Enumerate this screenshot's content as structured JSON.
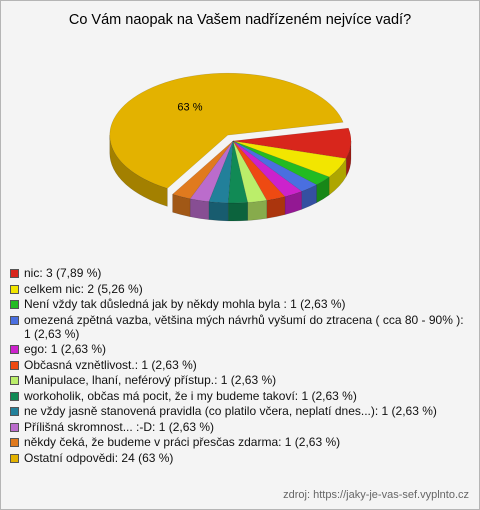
{
  "chart_data": {
    "type": "pie",
    "title": "Co Vám naopak na Vašem nadřízeném nejvíce vadí?",
    "categories": [
      "nic: 3 (7,89 %)",
      "celkem nic: 2 (5,26 %)",
      "Není vždy tak důsledná jak by někdy mohla byla : 1 (2,63 %)",
      "omezená zpětná vazba, většina mých návrhů vyšumí do ztracena ( cca 80 - 90% ): 1 (2,63 %)",
      "ego: 1 (2,63 %)",
      "Občasná vznětlivost.: 1 (2,63 %)",
      "Manipulace, lhaní, neférový přístup.: 1 (2,63 %)",
      "workoholik, občas má pocit, že i my budeme takoví: 1 (2,63 %)",
      "ne vždy jasně stanovená pravidla (co platilo včera, neplatí dnes...): 1 (2,63 %)",
      "Přílišná skromnost... :-D: 1 (2,63 %)",
      "někdy čeká, že budeme v práci přesčas zdarma: 1 (2,63 %)",
      "Ostatní odpovědi: 24 (63 %)"
    ],
    "values": [
      7.89,
      5.26,
      2.63,
      2.63,
      2.63,
      2.63,
      2.63,
      2.63,
      2.63,
      2.63,
      2.63,
      63
    ],
    "value_labels": [
      null,
      null,
      null,
      null,
      null,
      null,
      null,
      null,
      null,
      null,
      null,
      "63 %"
    ],
    "colors": [
      "#d8261c",
      "#f2e600",
      "#22bb22",
      "#4a6fe0",
      "#cc22cc",
      "#ee4a12",
      "#bbee6a",
      "#118a55",
      "#22809a",
      "#bb6ccc",
      "#e07a1e",
      "#e3b200"
    ],
    "source": "zdroj: https://jaky-je-vas-sef.vyplnto.cz"
  }
}
